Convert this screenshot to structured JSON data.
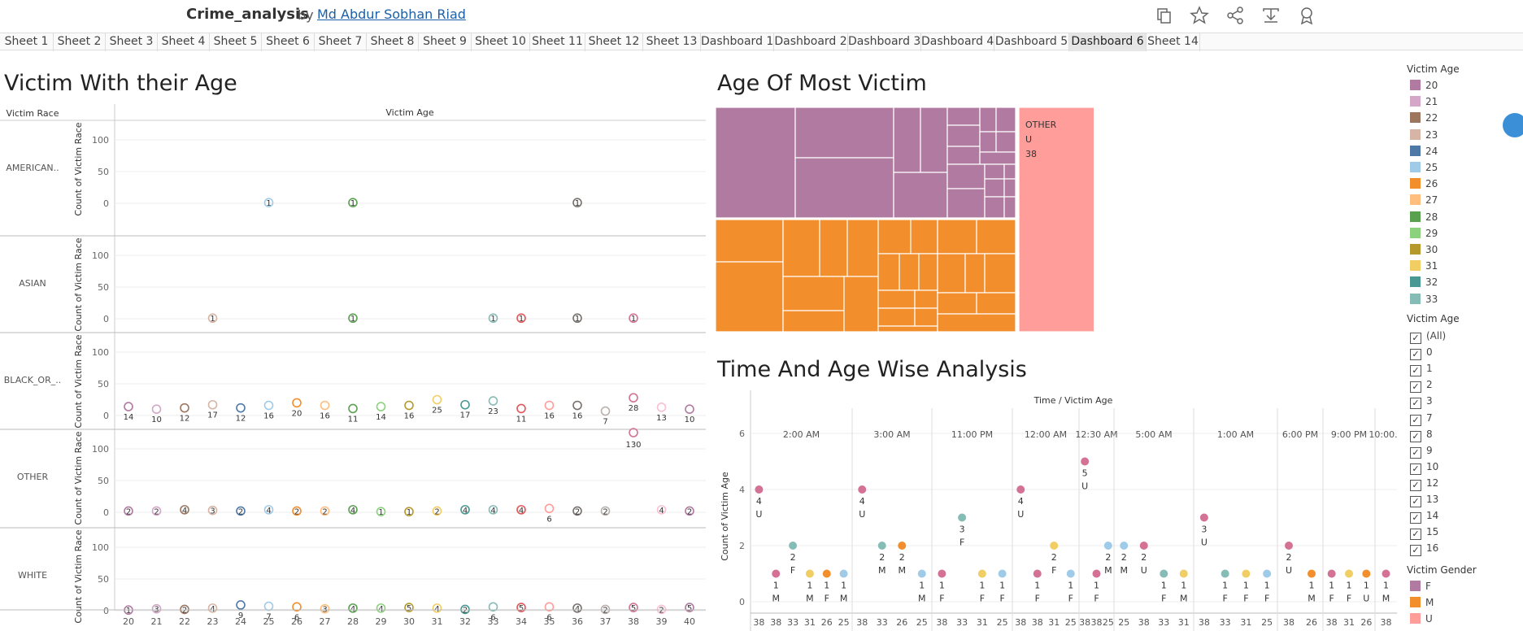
{
  "workbook": {
    "title": "Crime_analysis",
    "by": "by",
    "author": "Md Abdur Sobhan Riad"
  },
  "toolbar": [
    "duplicate-icon",
    "favorite-star-icon",
    "share-icon",
    "download-icon",
    "metrics-badge-icon"
  ],
  "tabs": [
    "Sheet 1",
    "Sheet 2",
    "Sheet 3",
    "Sheet 4",
    "Sheet 5",
    "Sheet 6",
    "Sheet 7",
    "Sheet 8",
    "Sheet 9",
    "Sheet 10",
    "Sheet 11",
    "Sheet 12",
    "Sheet 13",
    "Dashboard 1",
    "Dashboard 2",
    "Dashboard 3",
    "Dashboard 4",
    "Dashboard 5",
    "Dashboard 6",
    "Sheet 14"
  ],
  "active_tab": "Dashboard 6",
  "colors": {
    "20": "#b07aa1",
    "21": "#d4a6c8",
    "22": "#9d7660",
    "23": "#d7b5a6",
    "24": "#4e79a7",
    "25": "#a0cbe8",
    "26": "#f28e2b",
    "27": "#ffbe7d",
    "28": "#59a14f",
    "29": "#8cd17d",
    "30": "#b6992d",
    "31": "#f1ce63",
    "32": "#499894",
    "33": "#86bcb6",
    "34": "#e15759",
    "35": "#ff9d9a",
    "36": "#79706e",
    "37": "#bab0ac",
    "38": "#d37295",
    "39": "#fabfd2",
    "40": "#b07aa1",
    "F": "#b07aa1",
    "M": "#f28e2b",
    "U": "#ff9d9a"
  },
  "scatter_view": {
    "title": "Victim With their Age",
    "row_header": "Victim Race",
    "column_header": "Victim Age",
    "y_axis_label": "Count of Victim Race",
    "y_ticks": [
      "100",
      "50",
      "0"
    ],
    "ages": [
      "20",
      "21",
      "22",
      "23",
      "24",
      "25",
      "26",
      "27",
      "28",
      "29",
      "30",
      "31",
      "32",
      "33",
      "34",
      "35",
      "36",
      "37",
      "38",
      "39",
      "40"
    ]
  },
  "chart_data": [
    {
      "type": "scatter",
      "title": "Victim With their Age",
      "xlabel": "Victim Age",
      "ylabel": "Count of Victim Race",
      "ylim": [
        0,
        130
      ],
      "panels": [
        {
          "race": "AMERICAN..",
          "points": [
            {
              "age": 25,
              "count": 1
            },
            {
              "age": 28,
              "count": 1
            },
            {
              "age": 36,
              "count": 1
            }
          ]
        },
        {
          "race": "ASIAN",
          "points": [
            {
              "age": 23,
              "count": 1
            },
            {
              "age": 28,
              "count": 1
            },
            {
              "age": 33,
              "count": 1
            },
            {
              "age": 34,
              "count": 1
            },
            {
              "age": 36,
              "count": 1
            },
            {
              "age": 38,
              "count": 1
            }
          ]
        },
        {
          "race": "BLACK_OR_..",
          "points": [
            {
              "age": 20,
              "count": 14
            },
            {
              "age": 21,
              "count": 10
            },
            {
              "age": 22,
              "count": 12
            },
            {
              "age": 23,
              "count": 17
            },
            {
              "age": 24,
              "count": 12
            },
            {
              "age": 25,
              "count": 16
            },
            {
              "age": 26,
              "count": 20
            },
            {
              "age": 27,
              "count": 16
            },
            {
              "age": 28,
              "count": 11
            },
            {
              "age": 29,
              "count": 14
            },
            {
              "age": 30,
              "count": 16
            },
            {
              "age": 31,
              "count": 25
            },
            {
              "age": 32,
              "count": 17
            },
            {
              "age": 33,
              "count": 23
            },
            {
              "age": 34,
              "count": 11
            },
            {
              "age": 35,
              "count": 16
            },
            {
              "age": 36,
              "count": 16
            },
            {
              "age": 37,
              "count": 7
            },
            {
              "age": 38,
              "count": 28
            },
            {
              "age": 39,
              "count": 13
            },
            {
              "age": 40,
              "count": 10
            }
          ]
        },
        {
          "race": "OTHER",
          "points": [
            {
              "age": 20,
              "count": 2
            },
            {
              "age": 21,
              "count": 2
            },
            {
              "age": 22,
              "count": 4
            },
            {
              "age": 23,
              "count": 3
            },
            {
              "age": 24,
              "count": 2
            },
            {
              "age": 25,
              "count": 4
            },
            {
              "age": 26,
              "count": 2
            },
            {
              "age": 27,
              "count": 2
            },
            {
              "age": 28,
              "count": 4
            },
            {
              "age": 29,
              "count": 1
            },
            {
              "age": 30,
              "count": 1
            },
            {
              "age": 31,
              "count": 2
            },
            {
              "age": 32,
              "count": 4
            },
            {
              "age": 33,
              "count": 4
            },
            {
              "age": 34,
              "count": 4
            },
            {
              "age": 35,
              "count": 6
            },
            {
              "age": 36,
              "count": 2
            },
            {
              "age": 37,
              "count": 2
            },
            {
              "age": 38,
              "count": 130
            },
            {
              "age": 39,
              "count": 4
            },
            {
              "age": 40,
              "count": 2
            }
          ]
        },
        {
          "race": "WHITE",
          "points": [
            {
              "age": 20,
              "count": 1
            },
            {
              "age": 21,
              "count": 3
            },
            {
              "age": 22,
              "count": 2
            },
            {
              "age": 23,
              "count": 4
            },
            {
              "age": 24,
              "count": 9
            },
            {
              "age": 25,
              "count": 7
            },
            {
              "age": 26,
              "count": 6
            },
            {
              "age": 27,
              "count": 3
            },
            {
              "age": 28,
              "count": 4
            },
            {
              "age": 29,
              "count": 4
            },
            {
              "age": 30,
              "count": 5
            },
            {
              "age": 31,
              "count": 4
            },
            {
              "age": 32,
              "count": 2
            },
            {
              "age": 33,
              "count": 6
            },
            {
              "age": 34,
              "count": 5
            },
            {
              "age": 35,
              "count": 6
            },
            {
              "age": 36,
              "count": 4
            },
            {
              "age": 37,
              "count": 2
            },
            {
              "age": 38,
              "count": 5
            },
            {
              "age": 39,
              "count": 2
            },
            {
              "age": 40,
              "count": 5
            }
          ]
        }
      ]
    },
    {
      "type": "treemap",
      "title": "Age Of Most Victim",
      "label": {
        "race": "OTHER",
        "gender": "U",
        "age": "38"
      },
      "groups": [
        {
          "name": "F",
          "color": "#b07aa1"
        },
        {
          "name": "M",
          "color": "#f28e2b"
        },
        {
          "name": "U",
          "color": "#ff9d9a"
        }
      ]
    },
    {
      "type": "scatter",
      "title": "Time And Age Wise Analysis",
      "column_header": "Time / Victim Age",
      "ylabel": "Count of Victim Age",
      "y_ticks": [
        6,
        4,
        2,
        0
      ],
      "ylim": [
        0,
        6
      ],
      "times": [
        {
          "label": "2:00 AM",
          "marks": [
            {
              "age": 38,
              "count": 4,
              "gender": "U",
              "top": true
            },
            {
              "age": 38,
              "count": 1,
              "gender": "M"
            },
            {
              "age": 33,
              "count": 2,
              "gender": "F"
            },
            {
              "age": 31,
              "count": 1,
              "gender": "M"
            },
            {
              "age": 26,
              "count": 1,
              "gender": "F"
            },
            {
              "age": 25,
              "count": 1,
              "gender": "M"
            }
          ]
        },
        {
          "label": "3:00 AM",
          "marks": [
            {
              "age": 38,
              "count": 4,
              "gender": "U",
              "top": true
            },
            {
              "age": 33,
              "count": 2,
              "gender": "M"
            },
            {
              "age": 26,
              "count": 2,
              "gender": "M"
            },
            {
              "age": 25,
              "count": 1,
              "gender": "M"
            }
          ]
        },
        {
          "label": "11:00 PM",
          "marks": [
            {
              "age": 38,
              "count": 1,
              "gender": "F"
            },
            {
              "age": 33,
              "count": 3,
              "gender": "F"
            },
            {
              "age": 31,
              "count": 1,
              "gender": "F"
            },
            {
              "age": 25,
              "count": 1,
              "gender": "F"
            }
          ]
        },
        {
          "label": "12:00 AM",
          "marks": [
            {
              "age": 38,
              "count": 4,
              "gender": "U",
              "top": true
            },
            {
              "age": 38,
              "count": 1,
              "gender": "F"
            },
            {
              "age": 31,
              "count": 2,
              "gender": "F"
            },
            {
              "age": 25,
              "count": 1,
              "gender": "F"
            }
          ]
        },
        {
          "label": "12:30 AM",
          "marks": [
            {
              "age": 38,
              "count": 5,
              "gender": "U",
              "top": true
            },
            {
              "age": 38,
              "count": 1,
              "gender": "F"
            },
            {
              "age": 25,
              "count": 2,
              "gender": "M"
            }
          ]
        },
        {
          "label": "5:00 AM",
          "marks": [
            {
              "age": 25,
              "count": 2,
              "gender": "M"
            },
            {
              "age": 38,
              "count": 2,
              "gender": "U"
            },
            {
              "age": 33,
              "count": 1,
              "gender": "F"
            },
            {
              "age": 31,
              "count": 1,
              "gender": "M"
            }
          ]
        },
        {
          "label": "1:00 AM",
          "marks": [
            {
              "age": 38,
              "count": 3,
              "gender": "U",
              "top": true
            },
            {
              "age": 33,
              "count": 1,
              "gender": "F"
            },
            {
              "age": 31,
              "count": 1,
              "gender": "F"
            },
            {
              "age": 25,
              "count": 1,
              "gender": "F"
            }
          ]
        },
        {
          "label": "6:00 PM",
          "marks": [
            {
              "age": 38,
              "count": 2,
              "gender": "U"
            },
            {
              "age": 26,
              "count": 1,
              "gender": "M"
            }
          ]
        },
        {
          "label": "9:00 PM",
          "marks": [
            {
              "age": 38,
              "count": 1,
              "gender": "F"
            },
            {
              "age": 31,
              "count": 1,
              "gender": "F"
            },
            {
              "age": 26,
              "count": 1,
              "gender": "U"
            }
          ]
        },
        {
          "label": "10:00...",
          "marks": [
            {
              "age": 38,
              "count": 1,
              "gender": "M"
            }
          ]
        }
      ]
    }
  ],
  "legend_color": {
    "title": "Victim Age",
    "items": [
      "20",
      "21",
      "22",
      "23",
      "24",
      "25",
      "26",
      "27",
      "28",
      "29",
      "30",
      "31",
      "32",
      "33"
    ]
  },
  "filter_age": {
    "title": "Victim Age",
    "items": [
      "(All)",
      "0",
      "1",
      "2",
      "3",
      "7",
      "8",
      "9",
      "10",
      "12",
      "13",
      "14",
      "15",
      "16"
    ],
    "checked": "✓"
  },
  "legend_gender": {
    "title": "Victim Gender",
    "items": [
      "F",
      "M",
      "U"
    ]
  }
}
